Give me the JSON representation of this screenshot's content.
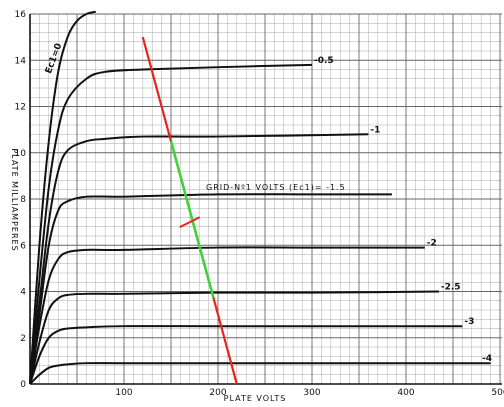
{
  "chart_data": {
    "type": "line",
    "xlabel": "PLATE VOLTS",
    "ylabel": "PLATE MILLIAMPERES",
    "xlim": [
      0,
      500
    ],
    "ylim": [
      0,
      16
    ],
    "x_ticks": [
      "100",
      "200",
      "300",
      "400",
      "500"
    ],
    "y_ticks": [
      "0",
      "2",
      "4",
      "6",
      "8",
      "10",
      "12",
      "14",
      "16"
    ],
    "grid": true,
    "annotation": "GRID-Nº1 VOLTS (Ec1)= -1.5",
    "series": [
      {
        "name": "Ec1=0",
        "label": "Ec1=0",
        "x": [
          0,
          10,
          20,
          30,
          40,
          50,
          60,
          70
        ],
        "y": [
          0,
          6,
          10.5,
          13.5,
          15,
          15.7,
          16,
          16.1
        ]
      },
      {
        "name": "-0.5",
        "label": "-0.5",
        "x": [
          0,
          10,
          20,
          30,
          40,
          60,
          80,
          120,
          200,
          300
        ],
        "y": [
          0,
          4.5,
          8.5,
          11,
          12.3,
          13.2,
          13.5,
          13.6,
          13.7,
          13.8
        ]
      },
      {
        "name": "-1",
        "label": "-1",
        "x": [
          0,
          10,
          20,
          30,
          40,
          60,
          80,
          120,
          200,
          360
        ],
        "y": [
          0,
          3.5,
          7,
          9.2,
          10.1,
          10.5,
          10.6,
          10.7,
          10.7,
          10.8
        ]
      },
      {
        "name": "-1.5",
        "label": "",
        "x": [
          0,
          10,
          20,
          30,
          40,
          60,
          100,
          200,
          300,
          385
        ],
        "y": [
          0,
          3,
          6,
          7.5,
          7.9,
          8.1,
          8.1,
          8.2,
          8.2,
          8.2
        ]
      },
      {
        "name": "-2",
        "label": "-2",
        "x": [
          0,
          10,
          20,
          30,
          40,
          60,
          100,
          200,
          300,
          420
        ],
        "y": [
          0,
          2.5,
          4.5,
          5.4,
          5.7,
          5.8,
          5.8,
          5.9,
          5.9,
          5.9
        ]
      },
      {
        "name": "-2.5",
        "label": "-2.5",
        "x": [
          0,
          10,
          20,
          30,
          40,
          60,
          100,
          200,
          300,
          435
        ],
        "y": [
          0,
          1.8,
          3.2,
          3.7,
          3.85,
          3.9,
          3.9,
          3.95,
          3.95,
          4.0
        ]
      },
      {
        "name": "-3",
        "label": "-3",
        "x": [
          0,
          10,
          20,
          30,
          40,
          60,
          100,
          200,
          300,
          460
        ],
        "y": [
          0,
          1.2,
          2.0,
          2.3,
          2.4,
          2.45,
          2.5,
          2.5,
          2.5,
          2.5
        ]
      },
      {
        "name": "-4",
        "label": "-4",
        "x": [
          0,
          10,
          20,
          30,
          40,
          60,
          100,
          200,
          300,
          490
        ],
        "y": [
          0,
          0.4,
          0.7,
          0.8,
          0.85,
          0.9,
          0.9,
          0.9,
          0.9,
          0.9
        ]
      }
    ],
    "load_line": {
      "x": [
        120,
        220
      ],
      "y": [
        15,
        0
      ],
      "color": "#e8231f"
    },
    "load_swing": {
      "x": [
        150,
        195
      ],
      "y": [
        10.5,
        3.75
      ],
      "color": "#3fd43a"
    },
    "operating_point": {
      "x": 170,
      "y": 7,
      "color": "#e8231f"
    }
  }
}
